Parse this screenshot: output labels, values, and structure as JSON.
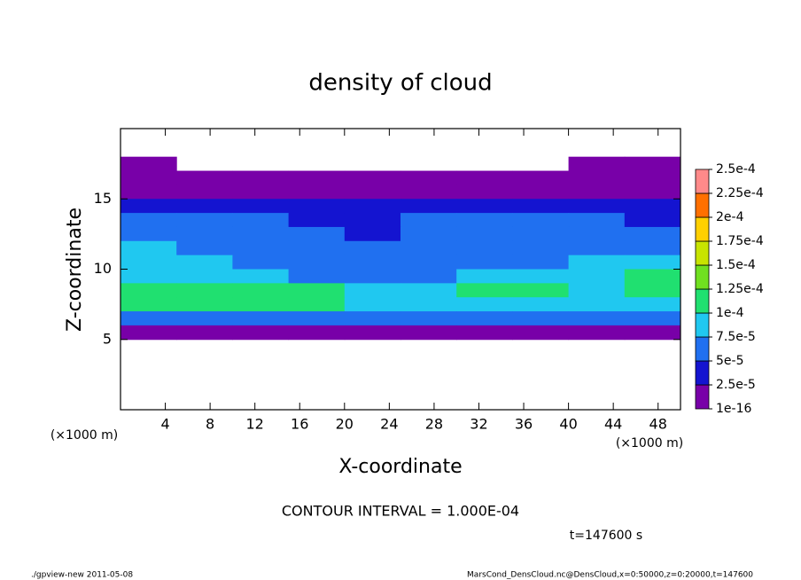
{
  "chart_data": {
    "type": "heatmap",
    "title": "density of cloud",
    "xlabel": "X-coordinate",
    "ylabel": "Z-coordinate",
    "xunit": "(×1000 m)",
    "yunit": "(×1000 m)",
    "xlim": [
      0,
      50
    ],
    "ylim": [
      0,
      20
    ],
    "xticks": [
      4,
      8,
      12,
      16,
      20,
      24,
      28,
      32,
      36,
      40,
      44,
      48
    ],
    "yticks": [
      5,
      10,
      15
    ],
    "x": [
      2.5,
      7.5,
      12.5,
      17.5,
      22.5,
      27.5,
      32.5,
      37.5,
      42.5,
      47.5
    ],
    "y": [
      17.5,
      16.5,
      15.5,
      14.5,
      13.5,
      12.5,
      11.5,
      10.5,
      9.5,
      8.5,
      7.5,
      6.5,
      5.5
    ],
    "values": [
      [
        1e-16,
        null,
        null,
        null,
        null,
        null,
        null,
        null,
        1e-16,
        1e-16
      ],
      [
        1e-05,
        1e-05,
        1e-05,
        1e-05,
        1e-05,
        1e-05,
        1e-05,
        1e-05,
        1e-05,
        1e-05
      ],
      [
        1.5e-05,
        1.5e-05,
        1.5e-05,
        1.5e-05,
        1.5e-05,
        1.5e-05,
        1.5e-05,
        1.5e-05,
        1.5e-05,
        1.5e-05
      ],
      [
        4e-05,
        4e-05,
        3.5e-05,
        3.5e-05,
        3.5e-05,
        3.5e-05,
        4e-05,
        4e-05,
        3.5e-05,
        3.5e-05
      ],
      [
        5.5e-05,
        5e-05,
        5e-05,
        4.5e-05,
        4.5e-05,
        5e-05,
        5e-05,
        5.5e-05,
        5e-05,
        4.5e-05
      ],
      [
        7e-05,
        6e-05,
        5.5e-05,
        5e-05,
        4.5e-05,
        5.5e-05,
        6e-05,
        6e-05,
        5.5e-05,
        6e-05
      ],
      [
        7.5e-05,
        6.5e-05,
        6e-05,
        5.5e-05,
        5e-05,
        6e-05,
        6.5e-05,
        6.5e-05,
        6e-05,
        7e-05
      ],
      [
        8e-05,
        8e-05,
        6.5e-05,
        6e-05,
        6e-05,
        6.5e-05,
        7e-05,
        7e-05,
        8e-05,
        9e-05
      ],
      [
        9e-05,
        9e-05,
        7.5e-05,
        7e-05,
        6.5e-05,
        7e-05,
        8e-05,
        8e-05,
        8.5e-05,
        0.000105
      ],
      [
        0.000105,
        0.000105,
        0.00011,
        0.000105,
        8.5e-05,
        8.5e-05,
        0.000105,
        0.0001,
        9.5e-05,
        0.000105
      ],
      [
        0.000105,
        0.0001,
        0.00011,
        0.000105,
        9e-05,
        8.5e-05,
        9e-05,
        9e-05,
        9e-05,
        9.5e-05
      ],
      [
        7e-05,
        6.5e-05,
        7e-05,
        6.5e-05,
        6.5e-05,
        6.5e-05,
        7e-05,
        7e-05,
        6.5e-05,
        6.5e-05
      ],
      [
        1.5e-05,
        1.5e-05,
        1.5e-05,
        1.5e-05,
        1.5e-05,
        1.5e-05,
        1.5e-05,
        1.5e-05,
        1.5e-05,
        1.5e-05
      ]
    ],
    "colorbar": {
      "ticks": [
        {
          "value": 1e-16,
          "label": "1e-16"
        },
        {
          "value": 2.5e-05,
          "label": "2.5e-5"
        },
        {
          "value": 5e-05,
          "label": "5e-5"
        },
        {
          "value": 7.5e-05,
          "label": "7.5e-5"
        },
        {
          "value": 0.0001,
          "label": "1e-4"
        },
        {
          "value": 0.000125,
          "label": "1.25e-4"
        },
        {
          "value": 0.00015,
          "label": "1.5e-4"
        },
        {
          "value": 0.000175,
          "label": "1.75e-4"
        },
        {
          "value": 0.0002,
          "label": "2e-4"
        },
        {
          "value": 0.000225,
          "label": "2.25e-4"
        },
        {
          "value": 0.00025,
          "label": "2.5e-4"
        }
      ],
      "colors": [
        "#7800a8",
        "#1414d0",
        "#2070f0",
        "#20c8f0",
        "#20e070",
        "#70e020",
        "#c8e400",
        "#ffd000",
        "#ff7000",
        "#ff8a8a"
      ]
    },
    "contour_note": "CONTOUR INTERVAL = 1.000E-04",
    "time_note": "t=147600 s",
    "footer_left": "./gpview-new   2011-05-08",
    "footer_right": "MarsCond_DensCloud.nc@DensCloud,x=0:50000,z=0:20000,t=147600"
  }
}
